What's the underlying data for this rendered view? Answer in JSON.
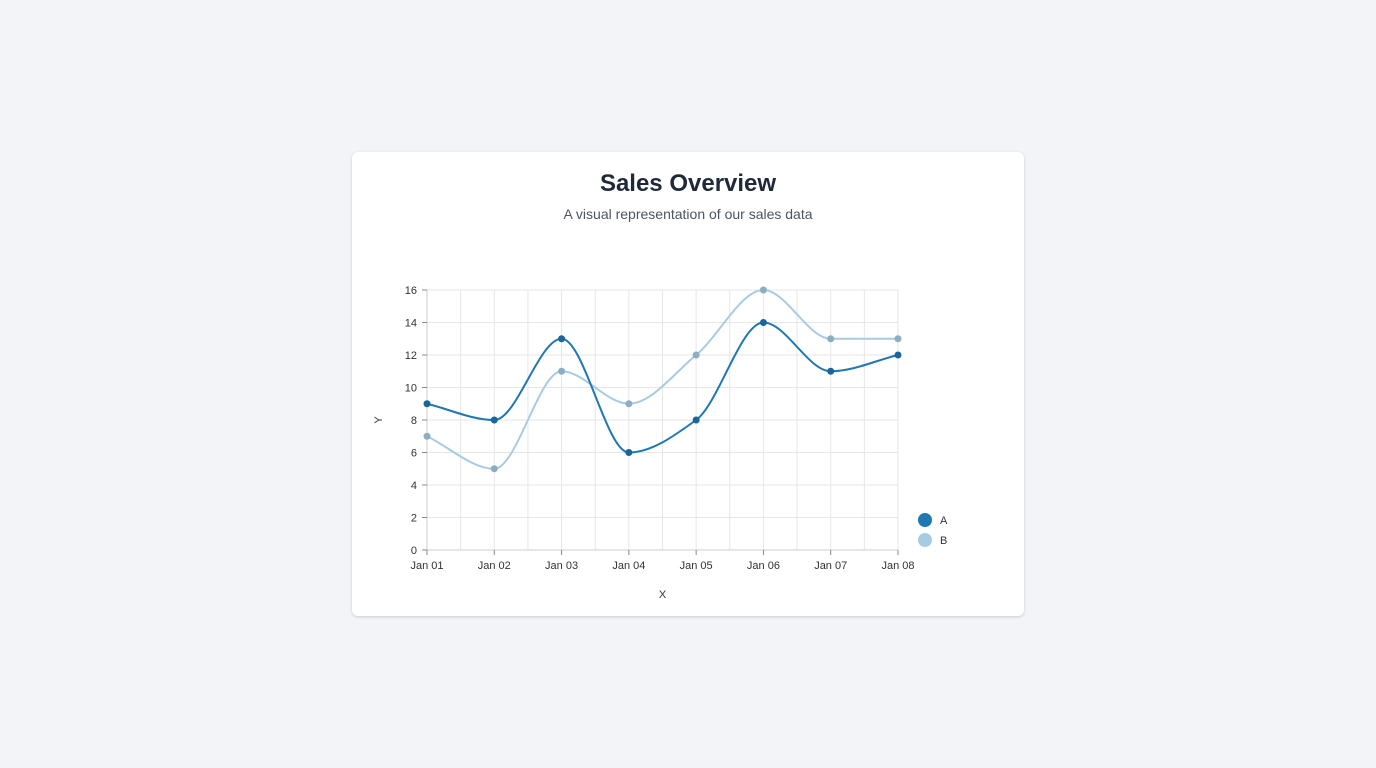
{
  "header": {
    "title": "Sales Overview",
    "subtitle": "A visual representation of our sales data"
  },
  "chart_data": {
    "type": "line",
    "curve": "smooth",
    "x": [
      "Jan 01",
      "Jan 02",
      "Jan 03",
      "Jan 04",
      "Jan 05",
      "Jan 06",
      "Jan 07",
      "Jan 08"
    ],
    "xlabel": "X",
    "ylabel": "Y",
    "ylim": [
      0,
      16
    ],
    "yticks": [
      0,
      2,
      4,
      6,
      8,
      10,
      12,
      14,
      16
    ],
    "grid": true,
    "legend_position": "bottom-right",
    "series": [
      {
        "name": "A",
        "color": "#1f77b4",
        "values": [
          9,
          8,
          13,
          6,
          8,
          14,
          11,
          12
        ]
      },
      {
        "name": "B",
        "color": "#a6cbe3",
        "values": [
          7,
          5,
          11,
          9,
          12,
          16,
          13,
          13
        ]
      }
    ]
  }
}
